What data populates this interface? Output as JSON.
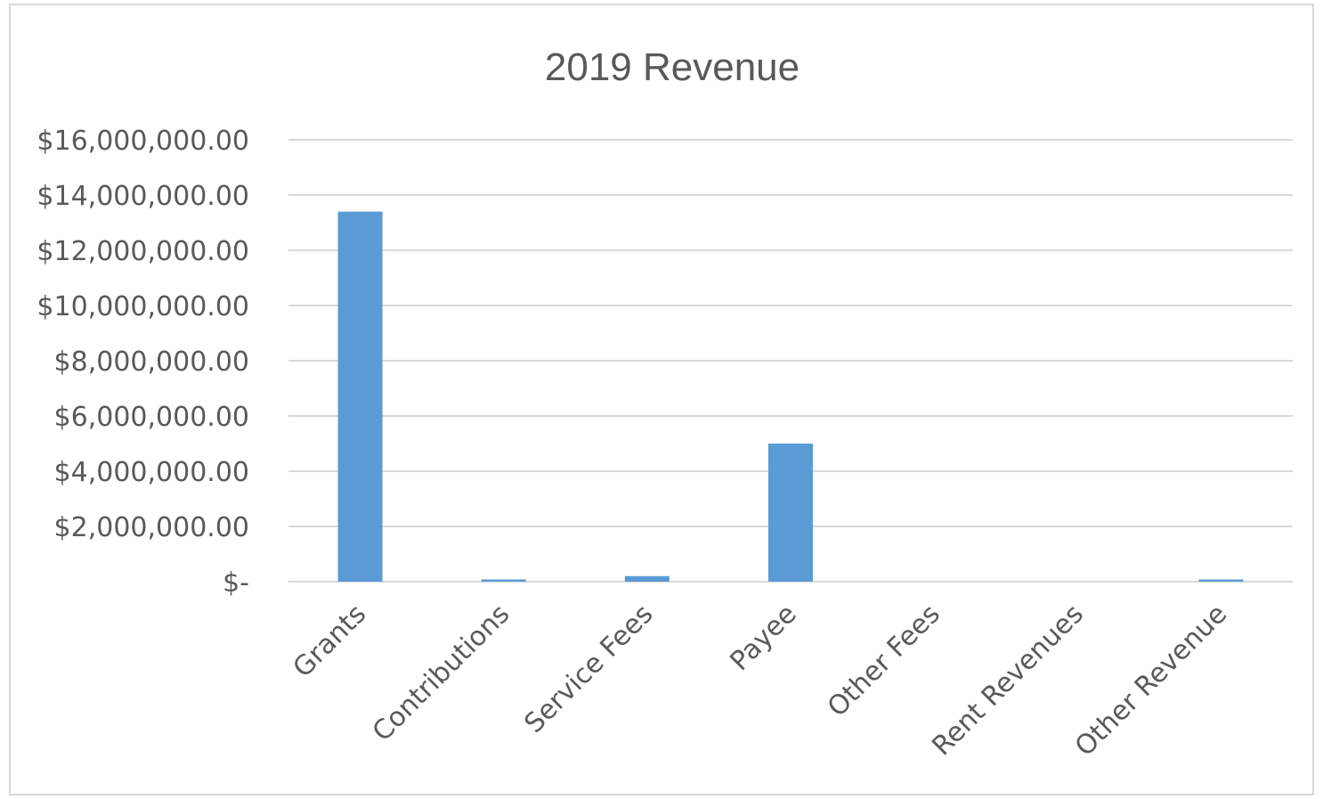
{
  "chart_data": {
    "type": "bar",
    "title": "2019 Revenue",
    "xlabel": "",
    "ylabel": "",
    "categories": [
      "Grants",
      "Contributions",
      "Service Fees",
      "Payee",
      "Other Fees",
      "Rent Revenues",
      "Other Revenue"
    ],
    "values": [
      13400000,
      80000,
      200000,
      5000000,
      0,
      0,
      80000
    ],
    "ylim": [
      0,
      16000000
    ],
    "yticks": [
      0,
      2000000,
      4000000,
      6000000,
      8000000,
      10000000,
      12000000,
      14000000,
      16000000
    ],
    "ytick_labels": [
      "$-",
      "$2,000,000.00",
      "$4,000,000.00",
      "$6,000,000.00",
      "$8,000,000.00",
      "$10,000,000.00",
      "$12,000,000.00",
      "$14,000,000.00",
      "$16,000,000.00"
    ],
    "grid": true,
    "legend": "none",
    "bar_color": "#5b9bd5"
  }
}
